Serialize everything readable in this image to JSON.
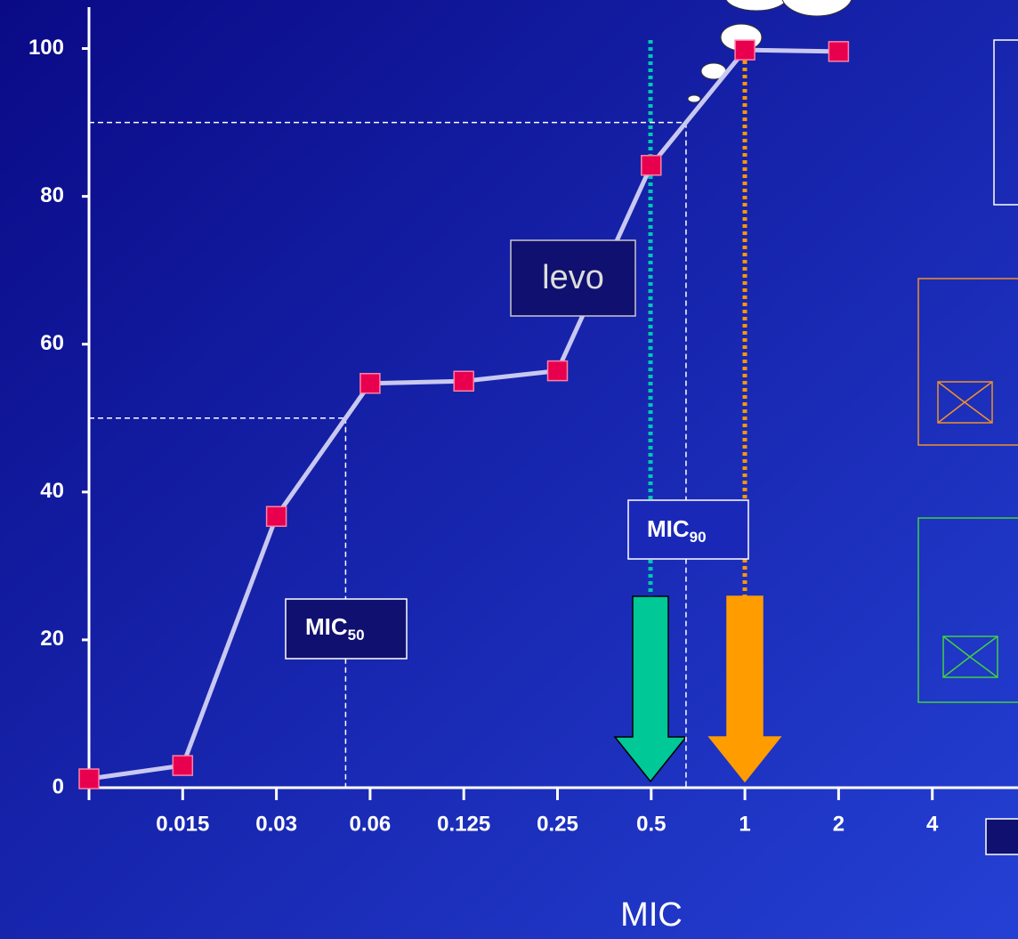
{
  "chart_data": {
    "type": "line",
    "x_label": "MIC",
    "categories": [
      null,
      "0.015",
      "0.03",
      "0.06",
      "0.125",
      "0.25",
      "0.5",
      "1",
      "2",
      "4"
    ],
    "series": [
      {
        "color": "#c8c8f0",
        "marker_color": "#e8004f",
        "values": [
          1.2,
          3,
          36.7,
          54.7,
          55,
          56.4,
          84.2,
          99.8,
          99.6,
          null
        ]
      }
    ],
    "ylim": [
      0,
      105
    ],
    "yticks": [
      0,
      20,
      40,
      60,
      80,
      100
    ],
    "reference_lines": [
      {
        "y": 50,
        "label": {
          "text": "MIC",
          "sub": "50"
        }
      },
      {
        "y": 90,
        "label": {
          "text": "MIC",
          "sub": "90"
        }
      }
    ],
    "annotations": [
      {
        "text": "levo"
      }
    ]
  }
}
